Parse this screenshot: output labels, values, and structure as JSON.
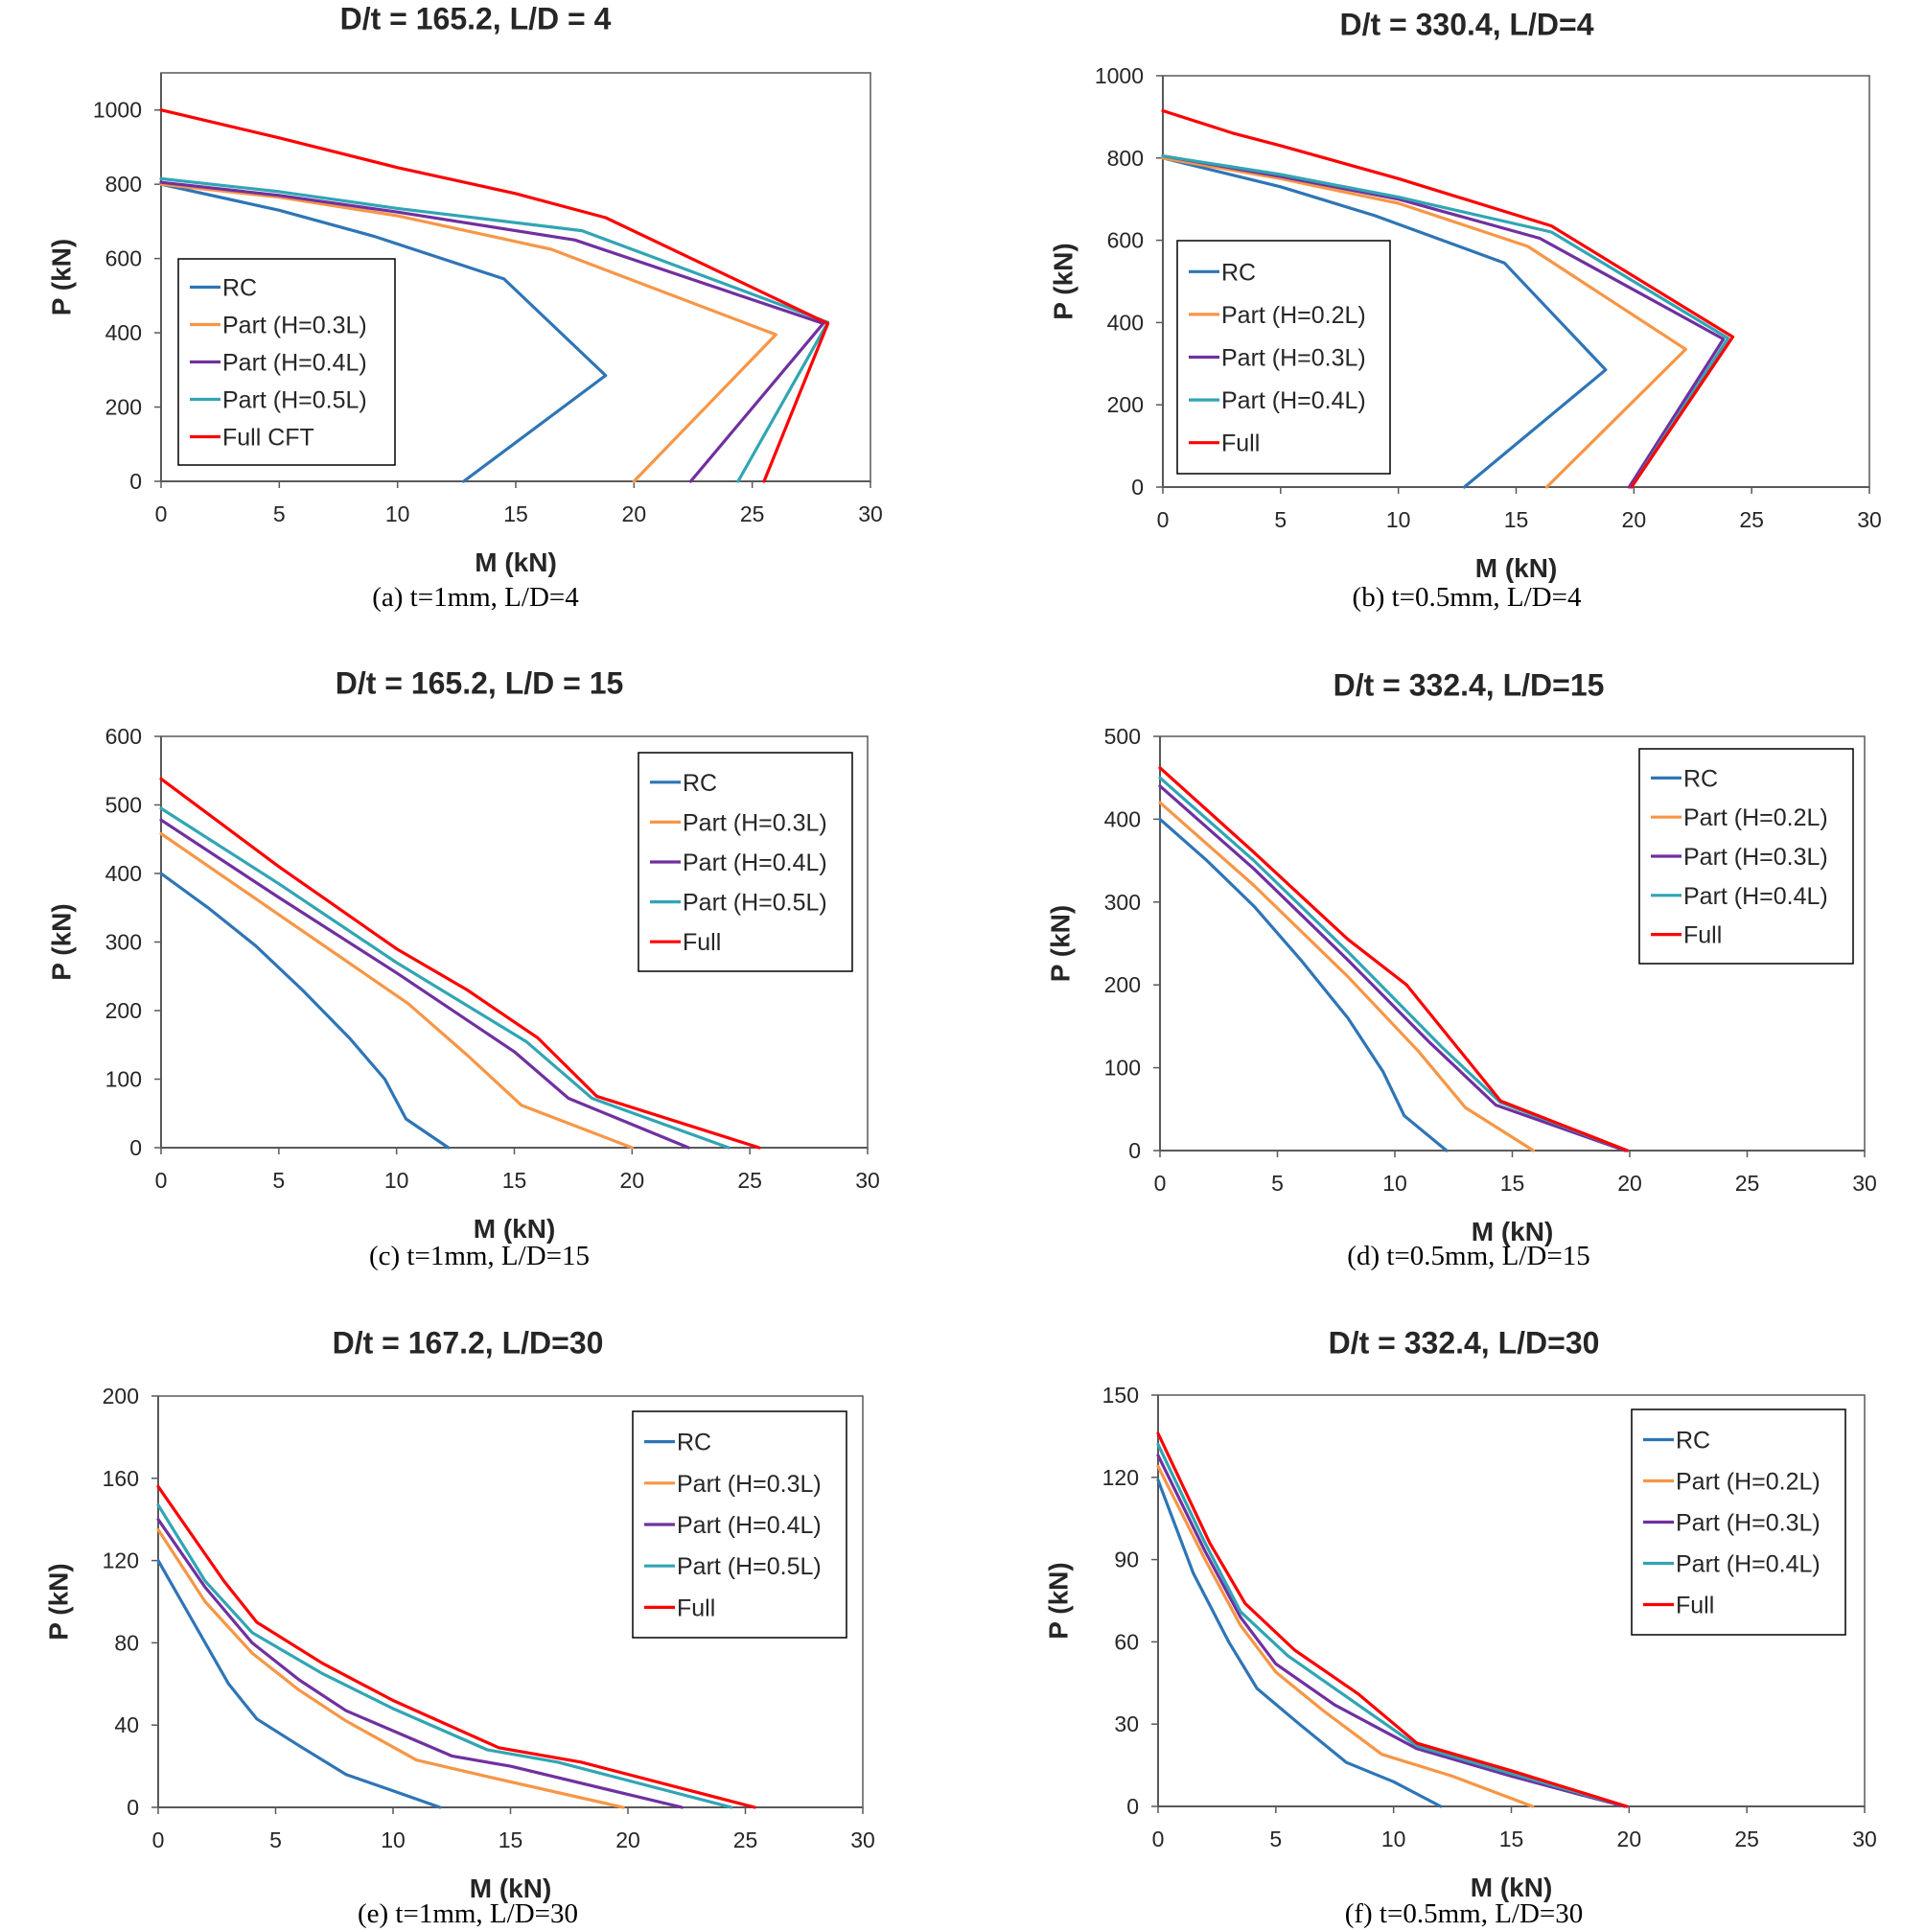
{
  "figure": {
    "background": "#ffffff",
    "axis_color": "#595959",
    "legend_border": "#000000"
  },
  "series_colors": {
    "RC": "#2e75b6",
    "Part1": "#f79646",
    "Part2": "#7030a0",
    "Part3": "#31a5b4",
    "Full": "#ff0000"
  },
  "chart_data": [
    {
      "id": "a",
      "type": "line",
      "title": "D/t = 165.2, L/D = 4",
      "xlabel": "M (kN)",
      "ylabel": "P (kN)",
      "caption": "(a) t=1mm, L/D=4",
      "xlim": [
        0,
        30
      ],
      "ylim": [
        0,
        1100
      ],
      "xticks": [
        0,
        5,
        10,
        15,
        20,
        25,
        30
      ],
      "yticks": [
        0,
        200,
        400,
        600,
        800,
        1000
      ],
      "grid": false,
      "legend_position": "left",
      "series": [
        {
          "name": "RC",
          "color_key": "RC",
          "x": [
            0,
            5,
            9,
            14.5,
            18.8,
            12.8
          ],
          "y": [
            800,
            730,
            660,
            545,
            285,
            0
          ]
        },
        {
          "name": "Part (H=0.3L)",
          "color_key": "Part1",
          "x": [
            0,
            5,
            10,
            16.5,
            26,
            20
          ],
          "y": [
            800,
            765,
            715,
            625,
            395,
            0
          ]
        },
        {
          "name": "Part (H=0.4L)",
          "color_key": "Part2",
          "x": [
            0,
            5,
            10,
            17.5,
            28,
            22.4
          ],
          "y": [
            805,
            770,
            725,
            650,
            425,
            0
          ]
        },
        {
          "name": "Part (H=0.5L)",
          "color_key": "Part3",
          "x": [
            0,
            5,
            10,
            17.8,
            28.2,
            24.4
          ],
          "y": [
            815,
            780,
            735,
            675,
            428,
            0
          ]
        },
        {
          "name": "Full CFT",
          "color_key": "Full",
          "x": [
            0,
            5,
            10,
            15,
            18.8,
            28.2,
            25.5
          ],
          "y": [
            1000,
            925,
            845,
            775,
            710,
            425,
            0
          ]
        }
      ]
    },
    {
      "id": "b",
      "type": "line",
      "title": "D/t = 330.4, L/D=4",
      "xlabel": "M (kN)",
      "ylabel": "P (kN)",
      "caption": "(b) t=0.5mm, L/D=4",
      "xlim": [
        0,
        30
      ],
      "ylim": [
        0,
        1000
      ],
      "xticks": [
        0,
        5,
        10,
        15,
        20,
        25,
        30
      ],
      "yticks": [
        0,
        200,
        400,
        600,
        800,
        1000
      ],
      "grid": false,
      "legend_position": "left",
      "series": [
        {
          "name": "RC",
          "color_key": "RC",
          "x": [
            0,
            5,
            9,
            14.5,
            18.8,
            12.8
          ],
          "y": [
            800,
            730,
            660,
            545,
            285,
            0
          ]
        },
        {
          "name": "Part (H=0.2L)",
          "color_key": "Part1",
          "x": [
            0,
            5,
            10,
            15.5,
            22.2,
            16.3
          ],
          "y": [
            800,
            750,
            690,
            585,
            335,
            0
          ]
        },
        {
          "name": "Part (H=0.3L)",
          "color_key": "Part2",
          "x": [
            0,
            5,
            10,
            16,
            23.8,
            19.8
          ],
          "y": [
            805,
            755,
            700,
            605,
            360,
            0
          ]
        },
        {
          "name": "Part (H=0.4L)",
          "color_key": "Part3",
          "x": [
            0,
            5,
            10,
            16.5,
            24,
            19.9
          ],
          "y": [
            805,
            760,
            705,
            620,
            362,
            0
          ]
        },
        {
          "name": "Full",
          "color_key": "Full",
          "x": [
            0,
            3,
            5,
            10,
            16.5,
            24.2,
            19.9
          ],
          "y": [
            915,
            860,
            830,
            750,
            635,
            365,
            0
          ]
        }
      ]
    },
    {
      "id": "c",
      "type": "line",
      "title": "D/t = 165.2, L/D = 15",
      "xlabel": "M (kN)",
      "ylabel": "P (kN)",
      "caption": "(c) t=1mm, L/D=15",
      "xlim": [
        0,
        30
      ],
      "ylim": [
        0,
        600
      ],
      "xticks": [
        0,
        5,
        10,
        15,
        20,
        25,
        30
      ],
      "yticks": [
        0,
        100,
        200,
        300,
        400,
        500,
        600
      ],
      "grid": false,
      "legend_position": "top-right",
      "series": [
        {
          "name": "RC",
          "color_key": "RC",
          "x": [
            0,
            2,
            4,
            6,
            8,
            9.5,
            10.4,
            12.2
          ],
          "y": [
            400,
            350,
            295,
            230,
            160,
            100,
            42,
            0
          ]
        },
        {
          "name": "Part (H=0.3L)",
          "color_key": "Part1",
          "x": [
            0,
            5,
            10.5,
            13,
            15.3,
            20
          ],
          "y": [
            458,
            340,
            210,
            135,
            62,
            0
          ]
        },
        {
          "name": "Part (H=0.4L)",
          "color_key": "Part2",
          "x": [
            0,
            5,
            10,
            15,
            17.3,
            22.4
          ],
          "y": [
            478,
            365,
            255,
            140,
            72,
            0
          ]
        },
        {
          "name": "Part (H=0.5L)",
          "color_key": "Part3",
          "x": [
            0,
            5,
            10,
            15.5,
            18.3,
            24.1
          ],
          "y": [
            495,
            385,
            270,
            155,
            72,
            0
          ]
        },
        {
          "name": "Full",
          "color_key": "Full",
          "x": [
            0,
            5,
            10,
            13,
            16,
            18.5,
            25.4
          ],
          "y": [
            538,
            410,
            290,
            230,
            160,
            75,
            0
          ]
        }
      ]
    },
    {
      "id": "d",
      "type": "line",
      "title": "D/t = 332.4, L/D=15",
      "xlabel": "M (kN)",
      "ylabel": "P (kN)",
      "caption": "(d) t=0.5mm, L/D=15",
      "xlim": [
        0,
        30
      ],
      "ylim": [
        0,
        500
      ],
      "xticks": [
        0,
        5,
        10,
        15,
        20,
        25,
        30
      ],
      "yticks": [
        0,
        100,
        200,
        300,
        400,
        500
      ],
      "grid": false,
      "legend_position": "top-right",
      "series": [
        {
          "name": "RC",
          "color_key": "RC",
          "x": [
            0,
            2,
            4,
            6,
            8,
            9.5,
            10.4,
            12.2
          ],
          "y": [
            400,
            350,
            295,
            230,
            160,
            95,
            42,
            0
          ]
        },
        {
          "name": "Part (H=0.2L)",
          "color_key": "Part1",
          "x": [
            0,
            4,
            8,
            11,
            13,
            15.9
          ],
          "y": [
            420,
            320,
            210,
            120,
            52,
            0
          ]
        },
        {
          "name": "Part (H=0.3L)",
          "color_key": "Part2",
          "x": [
            0,
            4,
            8,
            11.5,
            14.3,
            19.8
          ],
          "y": [
            440,
            340,
            230,
            130,
            55,
            0
          ]
        },
        {
          "name": "Part (H=0.4L)",
          "color_key": "Part3",
          "x": [
            0,
            4,
            8,
            12,
            14.5,
            19.9
          ],
          "y": [
            450,
            350,
            240,
            125,
            58,
            0
          ]
        },
        {
          "name": "Full",
          "color_key": "Full",
          "x": [
            0,
            4,
            8,
            10.5,
            12.5,
            14.5,
            19.9
          ],
          "y": [
            462,
            360,
            255,
            200,
            130,
            60,
            0
          ]
        }
      ]
    },
    {
      "id": "e",
      "type": "line",
      "title": "D/t = 167.2, L/D=30",
      "xlabel": "M (kN)",
      "ylabel": "P (kN)",
      "caption": "(e) t=1mm, L/D=30",
      "xlim": [
        0,
        30
      ],
      "ylim": [
        0,
        200
      ],
      "xticks": [
        0,
        5,
        10,
        15,
        20,
        25,
        30
      ],
      "yticks": [
        0,
        40,
        80,
        120,
        160,
        200
      ],
      "grid": false,
      "legend_position": "top-right",
      "series": [
        {
          "name": "RC",
          "color_key": "RC",
          "x": [
            0,
            1.5,
            3,
            4.2,
            6,
            8,
            10,
            12
          ],
          "y": [
            120,
            90,
            60,
            43,
            30,
            16,
            8,
            0
          ]
        },
        {
          "name": "Part (H=0.3L)",
          "color_key": "Part1",
          "x": [
            0,
            2,
            4,
            6,
            8,
            11,
            14,
            19.8
          ],
          "y": [
            135,
            100,
            75,
            57,
            42,
            23,
            15,
            0
          ]
        },
        {
          "name": "Part (H=0.4L)",
          "color_key": "Part2",
          "x": [
            0,
            2,
            4,
            6,
            8,
            12.5,
            15,
            22.3
          ],
          "y": [
            140,
            107,
            80,
            62,
            47,
            25,
            20,
            0
          ]
        },
        {
          "name": "Part (H=0.5L)",
          "color_key": "Part3",
          "x": [
            0,
            2,
            4,
            7,
            10,
            14,
            17,
            24.4
          ],
          "y": [
            147,
            110,
            85,
            65,
            48,
            28,
            22,
            0
          ]
        },
        {
          "name": "Full",
          "color_key": "Full",
          "x": [
            0,
            2.8,
            4.2,
            7,
            10,
            14.5,
            18,
            25.4
          ],
          "y": [
            156,
            110,
            90,
            70,
            52,
            29,
            22,
            0
          ]
        }
      ]
    },
    {
      "id": "f",
      "type": "line",
      "title": "D/t = 332.4, L/D=30",
      "xlabel": "M (kN)",
      "ylabel": "P (kN)",
      "caption": "(f) t=0.5mm, L/D=30",
      "xlim": [
        0,
        30
      ],
      "ylim": [
        0,
        150
      ],
      "xticks": [
        0,
        5,
        10,
        15,
        20,
        25,
        30
      ],
      "yticks": [
        0,
        30,
        60,
        90,
        120,
        150
      ],
      "grid": false,
      "legend_position": "top-right",
      "series": [
        {
          "name": "RC",
          "color_key": "RC",
          "x": [
            0,
            1.5,
            3,
            4.2,
            6,
            8,
            10,
            12
          ],
          "y": [
            119,
            85,
            60,
            43,
            30,
            16,
            9,
            0
          ]
        },
        {
          "name": "Part (H=0.2L)",
          "color_key": "Part1",
          "x": [
            0,
            2,
            3.5,
            5,
            7,
            9.5,
            12.5,
            15.9
          ],
          "y": [
            124,
            90,
            66,
            49,
            35,
            19,
            11,
            0
          ]
        },
        {
          "name": "Part (H=0.3L)",
          "color_key": "Part2",
          "x": [
            0,
            2,
            3.5,
            5,
            7.5,
            11,
            15,
            19.8
          ],
          "y": [
            128,
            93,
            69,
            52,
            37,
            21,
            11,
            0
          ]
        },
        {
          "name": "Part (H=0.4L)",
          "color_key": "Part3",
          "x": [
            0,
            2,
            3.5,
            5.5,
            8,
            11,
            15,
            19.9
          ],
          "y": [
            132,
            96,
            71,
            55,
            40,
            22,
            12,
            0
          ]
        },
        {
          "name": "Full",
          "color_key": "Full",
          "x": [
            0,
            2.2,
            3.7,
            5.8,
            8.5,
            11,
            15,
            19.9
          ],
          "y": [
            136,
            96,
            74,
            57,
            41,
            23,
            13,
            0
          ]
        }
      ]
    }
  ]
}
